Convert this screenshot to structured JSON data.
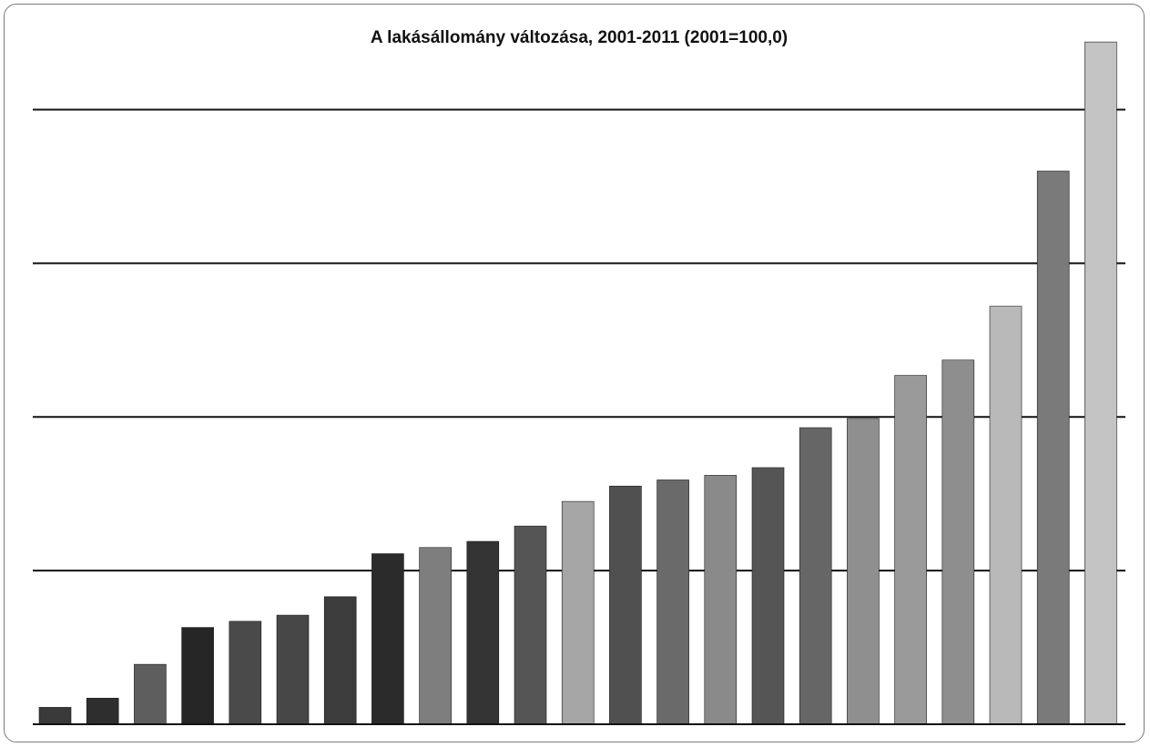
{
  "chart_data": {
    "type": "bar",
    "title": "A lakásállomány változása, 2001-2011 (2001=100,0)",
    "xlabel": "",
    "ylabel": "",
    "ylim": [
      0,
      4.5
    ],
    "grid": true,
    "legend": "none",
    "values": [
      0.11,
      0.17,
      0.39,
      0.63,
      0.67,
      0.71,
      0.83,
      1.11,
      1.15,
      1.19,
      1.29,
      1.45,
      1.55,
      1.59,
      1.62,
      1.67,
      1.93,
      1.99,
      2.27,
      2.37,
      2.72,
      3.6,
      4.44
    ],
    "colors": [
      "#3a3a3a",
      "#2e2e2e",
      "#5e5e5e",
      "#262626",
      "#4a4a4a",
      "#474747",
      "#3c3c3c",
      "#2b2b2b",
      "#7e7e7e",
      "#333333",
      "#555555",
      "#a6a6a6",
      "#505050",
      "#6a6a6a",
      "#8a8a8a",
      "#555555",
      "#666666",
      "#8f8f8f",
      "#9a9a9a",
      "#8e8e8e",
      "#b9b9b9",
      "#7a7a7a",
      "#c3c3c3"
    ]
  }
}
